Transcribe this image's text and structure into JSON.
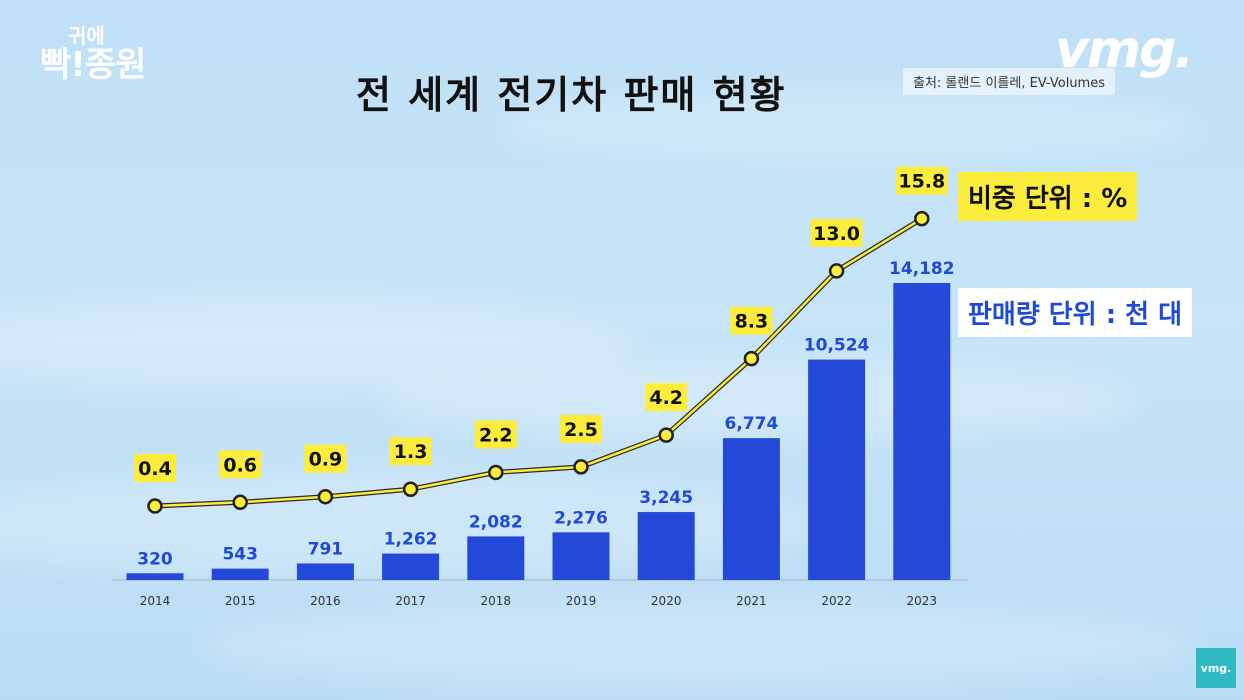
{
  "branding": {
    "left_logo_line1": "귀에",
    "left_logo_line2": "빡!종원",
    "right_logo": "vmg.",
    "corner_badge": "vmg."
  },
  "chart_data": {
    "type": "bar",
    "title": "전 세계 전기차 판매 현황",
    "source": "출처: 롤랜드 이를레, EV-Volumes",
    "categories": [
      "2014",
      "2015",
      "2016",
      "2017",
      "2018",
      "2019",
      "2020",
      "2021",
      "2022",
      "2023"
    ],
    "series": [
      {
        "type": "bar",
        "unit_label": "판매량 단위 : 천 대",
        "values": [
          320,
          543,
          791,
          1262,
          2082,
          2276,
          3245,
          6774,
          10524,
          14182
        ],
        "value_labels": [
          "320",
          "543",
          "791",
          "1,262",
          "2,082",
          "2,276",
          "3,245",
          "6,774",
          "10,524",
          "14,182"
        ],
        "color": "#2449d8"
      },
      {
        "type": "line",
        "unit_label": "비중 단위 : %",
        "values": [
          0.4,
          0.6,
          0.9,
          1.3,
          2.2,
          2.5,
          4.2,
          8.3,
          13.0,
          15.8
        ],
        "value_labels": [
          "0.4",
          "0.6",
          "0.9",
          "1.3",
          "2.2",
          "2.5",
          "4.2",
          "8.3",
          "13.0",
          "15.8"
        ],
        "color": "#fcec3b"
      }
    ],
    "grid": false
  }
}
